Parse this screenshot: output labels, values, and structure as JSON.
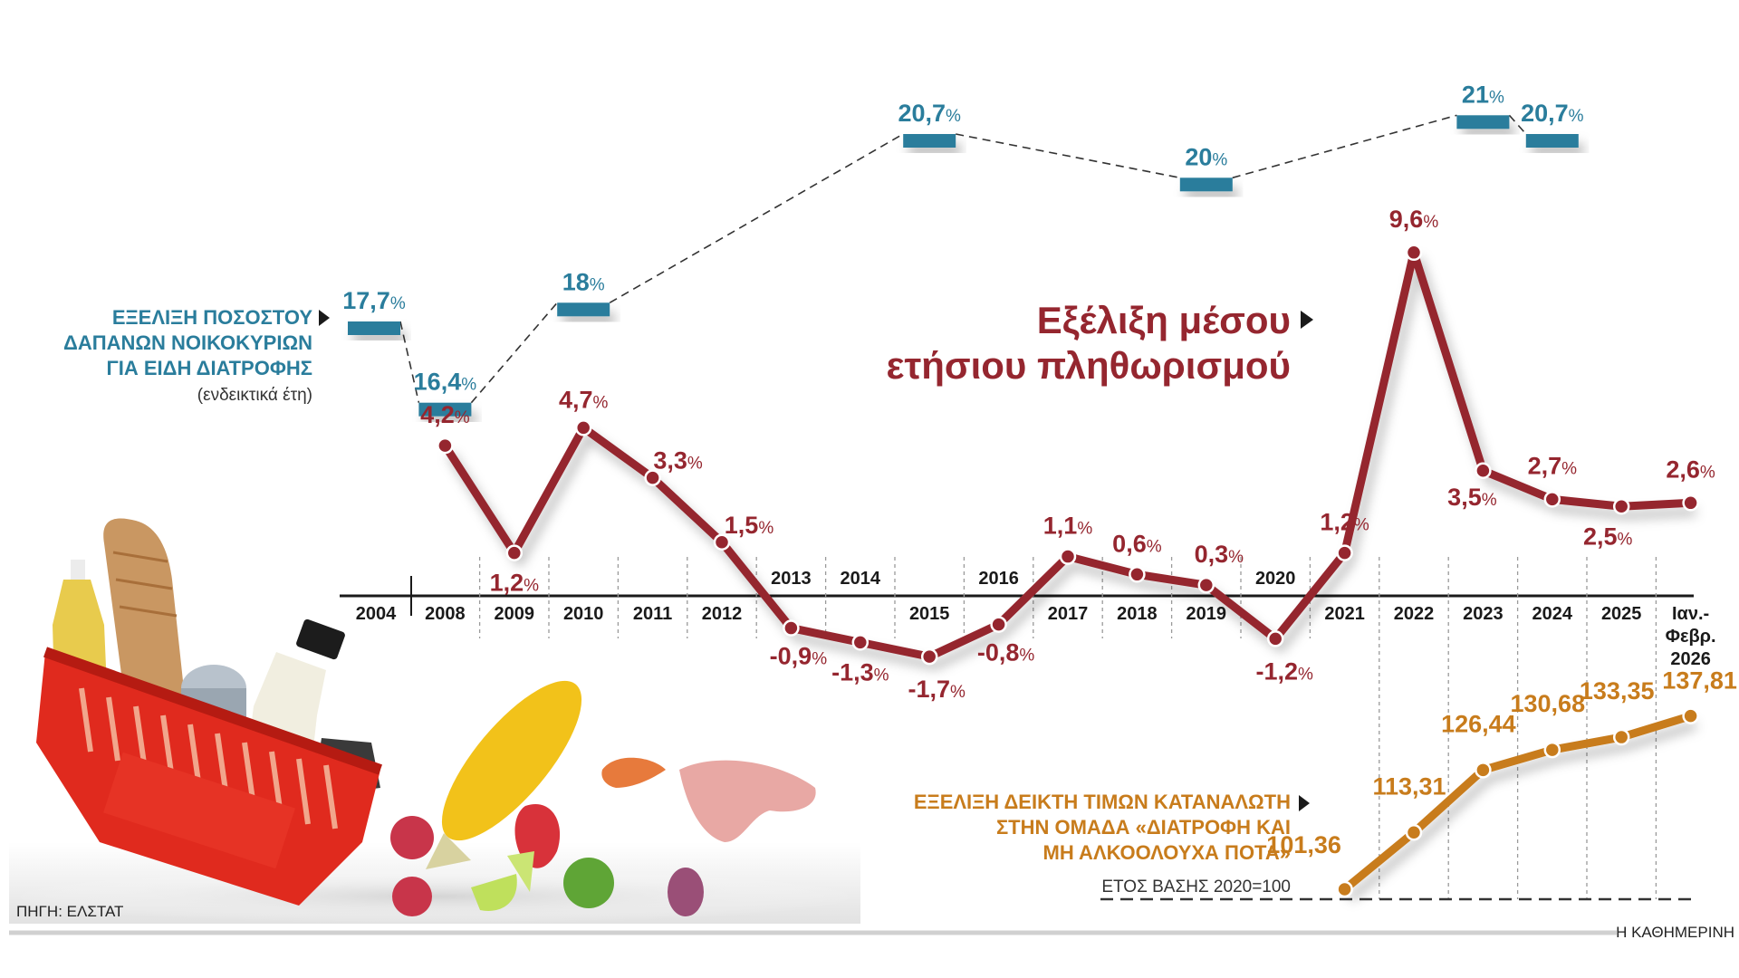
{
  "chart_data": [
    {
      "type": "line",
      "title": "Εξέλιξη μέσου ετήσιου πληθωρισμού",
      "categories": [
        "2008",
        "2009",
        "2010",
        "2011",
        "2012",
        "2013",
        "2014",
        "2015",
        "2016",
        "2017",
        "2018",
        "2019",
        "2020",
        "2021",
        "2022",
        "2023",
        "2024",
        "2025",
        "Ιαν.-Φεβρ. 2026"
      ],
      "values": [
        4.2,
        1.2,
        4.7,
        3.3,
        1.5,
        -0.9,
        -1.3,
        -1.7,
        -0.8,
        1.1,
        0.6,
        0.3,
        -1.2,
        1.2,
        9.6,
        3.5,
        2.7,
        2.5,
        2.6
      ],
      "labels": [
        "4,2",
        "1,2",
        "4,7",
        "3,3",
        "1,5",
        "-0,9",
        "-1,3",
        "-1,7",
        "-0,8",
        "1,1",
        "0,6",
        "0,3",
        "-1,2",
        "1,2",
        "9,6",
        "3,5",
        "2,7",
        "2,5",
        "2,6"
      ],
      "unit": "%",
      "color": "#95262f",
      "ylim": [
        -2,
        10
      ]
    },
    {
      "type": "line",
      "title": "ΕΞΕΛΙΞΗ ΠΟΣΟΣΤΟΥ ΔΑΠΑΝΩΝ ΝΟΙΚΟΚΥΡΙΩΝ ΓΙΑ ΕΙΔΗ ΔΙΑΤΡΟΦΗΣ",
      "subtitle": "(ενδεικτικά έτη)",
      "categories": [
        "2004",
        "2008",
        "2010",
        "2015",
        "2019",
        "2023",
        "2024"
      ],
      "values": [
        17.7,
        16.4,
        18,
        20.7,
        20,
        21,
        20.7
      ],
      "labels": [
        "17,7",
        "16,4",
        "18",
        "20,7",
        "20",
        "21",
        "20,7"
      ],
      "unit": "%",
      "color": "#2a7d9c",
      "ylim": [
        16,
        21.5
      ]
    },
    {
      "type": "line",
      "title": "ΕΞΕΛΙΞΗ ΔΕΙΚΤΗ ΤΙΜΩΝ ΚΑΤΑΝΑΛΩΤΗ ΣΤΗΝ ΟΜΑΔΑ «ΔΙΑΤΡΟΦΗ ΚΑΙ ΜΗ ΑΛΚΟΟΛΟΥΧΑ ΠΟΤΑ»",
      "subtitle": "ΕΤΟΣ ΒΑΣΗΣ 2020=100",
      "categories": [
        "2021",
        "2022",
        "2023",
        "2024",
        "2025",
        "Ιαν.-Φεβρ. 2026"
      ],
      "values": [
        101.36,
        113.31,
        126.44,
        130.68,
        133.35,
        137.81
      ],
      "labels": [
        "101,36",
        "113,31",
        "126,44",
        "130,68",
        "133,35",
        "137,81"
      ],
      "color": "#c87c1c",
      "base": 100
    }
  ],
  "axis": {
    "columns": [
      "2004",
      "2008",
      "2009",
      "2010",
      "2011",
      "2012",
      "2013",
      "2014",
      "2015",
      "2016",
      "2017",
      "2018",
      "2019",
      "2020",
      "2021",
      "2022",
      "2023",
      "2024",
      "2025",
      "Ιαν.-|Φεβρ.|2026"
    ],
    "above_axis": [
      "2013",
      "2014",
      "2016",
      "2020"
    ]
  },
  "legend": {
    "blue_lines": [
      "ΕΞΕΛΙΞΗ ΠΟΣΟΣΤΟΥ",
      "ΔΑΠΑΝΩΝ ΝΟΙΚΟΚΥΡΙΩΝ",
      "ΓΙΑ ΕΙΔΗ ΔΙΑΤΡΟΦΗΣ"
    ],
    "blue_note": "(ενδεικτικά έτη)",
    "red_lines": [
      "Εξέλιξη μέσου",
      "ετήσιου πληθωρισμού"
    ],
    "orange_lines": [
      "ΕΞΕΛΙΞΗ ΔΕΙΚΤΗ ΤΙΜΩΝ ΚΑΤΑΝΑΛΩΤΗ",
      "ΣΤΗΝ ΟΜΑΔΑ «ΔΙΑΤΡΟΦΗ ΚΑΙ",
      "ΜΗ ΑΛΚΟΟΛΟΥΧΑ ΠΟΤΑ»"
    ],
    "orange_note": "ΕΤΟΣ ΒΑΣΗΣ 2020=100"
  },
  "footer": {
    "source": "ΠΗΓΗ: ΕΛΣΤΑΤ",
    "publisher": "Η ΚΑΘΗΜΕΡΙΝΗ"
  },
  "illustration": {
    "description": "basket of groceries with fruit, corn, shrimp and meat"
  }
}
